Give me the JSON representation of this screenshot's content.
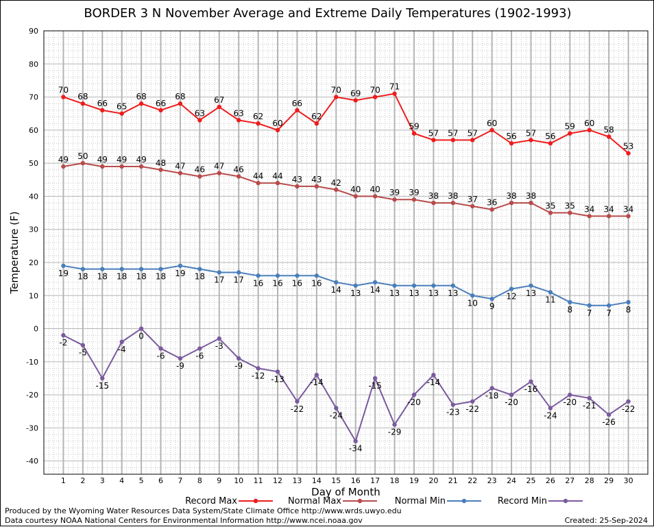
{
  "chart_data": {
    "type": "line",
    "title": "BORDER 3 N November Average and Extreme Daily Temperatures (1902-1993)",
    "xlabel": "Day of Month",
    "ylabel": "Temperature (F)",
    "ylim": [
      -44,
      90
    ],
    "yticks": [
      -40,
      -30,
      -20,
      -10,
      0,
      10,
      20,
      30,
      40,
      50,
      60,
      70,
      80,
      90
    ],
    "x": [
      1,
      2,
      3,
      4,
      5,
      6,
      7,
      8,
      9,
      10,
      11,
      12,
      13,
      14,
      15,
      16,
      17,
      18,
      19,
      20,
      21,
      22,
      23,
      24,
      25,
      26,
      27,
      28,
      29,
      30
    ],
    "grid": true,
    "legend_position": "bottom",
    "series": [
      {
        "name": "Record Max",
        "color": "#ee1c1c",
        "values": [
          70,
          68,
          66,
          65,
          68,
          66,
          68,
          63,
          67,
          63,
          62,
          60,
          66,
          62,
          70,
          69,
          70,
          71,
          59,
          57,
          57,
          57,
          60,
          56,
          57,
          56,
          59,
          60,
          58,
          53
        ]
      },
      {
        "name": "Normal Max",
        "color": "#b84a4a",
        "values": [
          49,
          50,
          49,
          49,
          49,
          48,
          47,
          46,
          47,
          46,
          44,
          44,
          43,
          43,
          42,
          40,
          40,
          39,
          39,
          38,
          38,
          37,
          36,
          38,
          38,
          35,
          35,
          34,
          34,
          34
        ]
      },
      {
        "name": "Normal Min",
        "color": "#4a7ebb",
        "values": [
          19,
          18,
          18,
          18,
          18,
          18,
          19,
          18,
          17,
          17,
          16,
          16,
          16,
          16,
          14,
          13,
          14,
          13,
          13,
          13,
          13,
          10,
          9,
          12,
          13,
          11,
          8,
          7,
          7,
          8
        ]
      },
      {
        "name": "Record Min",
        "color": "#7a5a9e",
        "values": [
          -2,
          -5,
          -15,
          -4,
          0,
          -6,
          -9,
          -6,
          -3,
          -9,
          -12,
          -13,
          -22,
          -14,
          -24,
          -34,
          -15,
          -29,
          -20,
          -14,
          -23,
          -22,
          -18,
          -20,
          -16,
          -24,
          -20,
          -21,
          -26,
          -22
        ]
      }
    ]
  },
  "footer": {
    "produced": "Produced by the Wyoming Water Resources Data System/State Climate Office http://www.wrds.uwyo.edu",
    "courtesy": "Data courtesy NOAA National Centers for Environmental Information http://www.ncei.noaa.gov",
    "created": "Created: 25-Sep-2024"
  }
}
